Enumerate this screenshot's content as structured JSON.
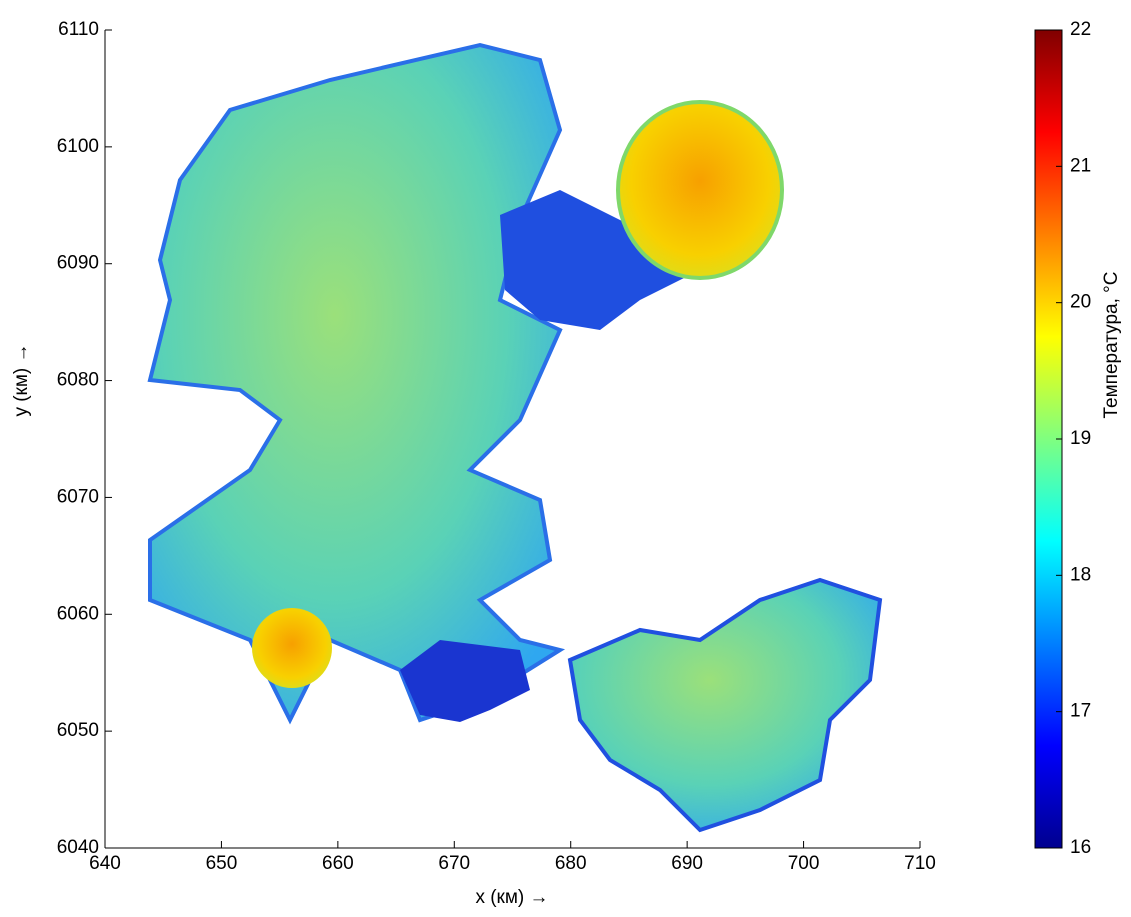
{
  "chart_data": {
    "type": "heatmap",
    "x_label": "x (км) →",
    "y_label": "y (км) →",
    "xlim": [
      640,
      710
    ],
    "xticks": [
      640,
      650,
      660,
      670,
      680,
      690,
      700,
      710
    ],
    "ylim": [
      6040,
      6110
    ],
    "yticks": [
      6040,
      6050,
      6060,
      6070,
      6080,
      6090,
      6100,
      6110
    ],
    "colorbar": {
      "label": "Температура, °C",
      "lim": [
        16,
        22
      ],
      "ticks": [
        16,
        17,
        18,
        19,
        20,
        21,
        22
      ]
    }
  }
}
